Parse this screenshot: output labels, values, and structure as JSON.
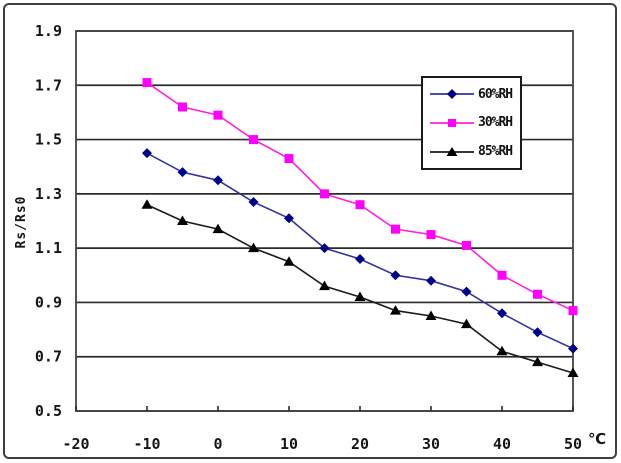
{
  "window": {
    "background": "#ffffff",
    "frame_border_color": "#3f3f3f",
    "grid_color": "#2b2b2b",
    "plot_border_color": "#444444"
  },
  "chart_data": {
    "type": "line",
    "title": "",
    "xlabel": "℃",
    "ylabel": "Rs/Rs0",
    "xlim": [
      -20,
      50
    ],
    "ylim": [
      0.5,
      1.9
    ],
    "grid": "horizontal",
    "legend_position": "upper-right-inside",
    "x_ticks": [
      -20,
      -10,
      0,
      10,
      20,
      30,
      40,
      50
    ],
    "x_tick_labels": [
      "-20",
      "-10",
      "0",
      "10",
      "20",
      "30",
      "40",
      "50"
    ],
    "y_ticks": [
      0.5,
      0.7,
      0.9,
      1.1,
      1.3,
      1.5,
      1.7,
      1.9
    ],
    "y_tick_labels": [
      "0.5",
      "0.7",
      "0.9",
      "1.1",
      "1.3",
      "1.5",
      "1.7",
      "1.9"
    ],
    "x": [
      -10,
      -5,
      0,
      5,
      10,
      15,
      20,
      25,
      30,
      35,
      40,
      45,
      50
    ],
    "series": [
      {
        "name": "60%RH",
        "marker": "diamond",
        "marker_color": "#00008b",
        "line_color": "#3333a0",
        "values": [
          1.45,
          1.38,
          1.35,
          1.27,
          1.21,
          1.1,
          1.06,
          1.0,
          0.98,
          0.94,
          0.86,
          0.79,
          0.73
        ]
      },
      {
        "name": "30%RH",
        "marker": "square",
        "marker_color": "#ff00ff",
        "line_color": "#ff22dd",
        "values": [
          1.71,
          1.62,
          1.59,
          1.5,
          1.43,
          1.3,
          1.26,
          1.17,
          1.15,
          1.11,
          1.0,
          0.93,
          0.87
        ]
      },
      {
        "name": "85%RH",
        "marker": "triangle",
        "marker_color": "#000000",
        "line_color": "#1a1a1a",
        "values": [
          1.26,
          1.2,
          1.17,
          1.1,
          1.05,
          0.96,
          0.92,
          0.87,
          0.85,
          0.82,
          0.72,
          0.68,
          0.64
        ]
      }
    ]
  }
}
